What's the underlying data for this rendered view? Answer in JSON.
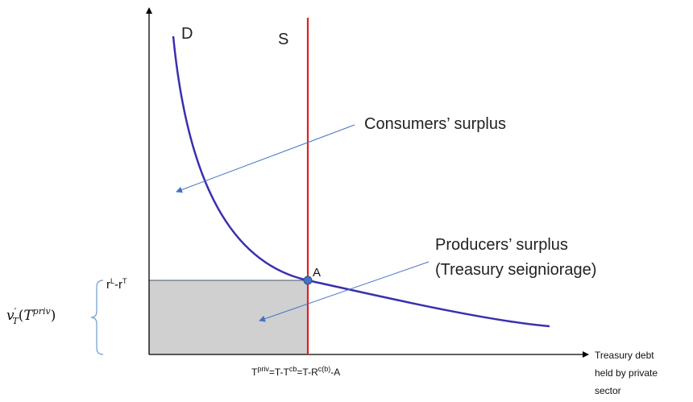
{
  "diagram": {
    "demand_label": "D",
    "supply_label": "S",
    "consumers_label": "Consumers’ surplus",
    "producers_label": [
      "Producers’ surplus",
      "(Treasury seigniorage)"
    ],
    "point_label": "A",
    "rate_label": [
      "r",
      "L",
      "-r",
      "T"
    ],
    "marginal_value_label": [
      "v",
      "′",
      "T",
      "(",
      "T",
      "priv",
      ")"
    ],
    "quantity_label": [
      "T",
      "priv",
      "=T-T",
      "cb",
      "=T-R",
      "c(b)",
      "-A"
    ],
    "x_axis_label": [
      "Treasury debt",
      "held by private",
      "sector"
    ]
  }
}
